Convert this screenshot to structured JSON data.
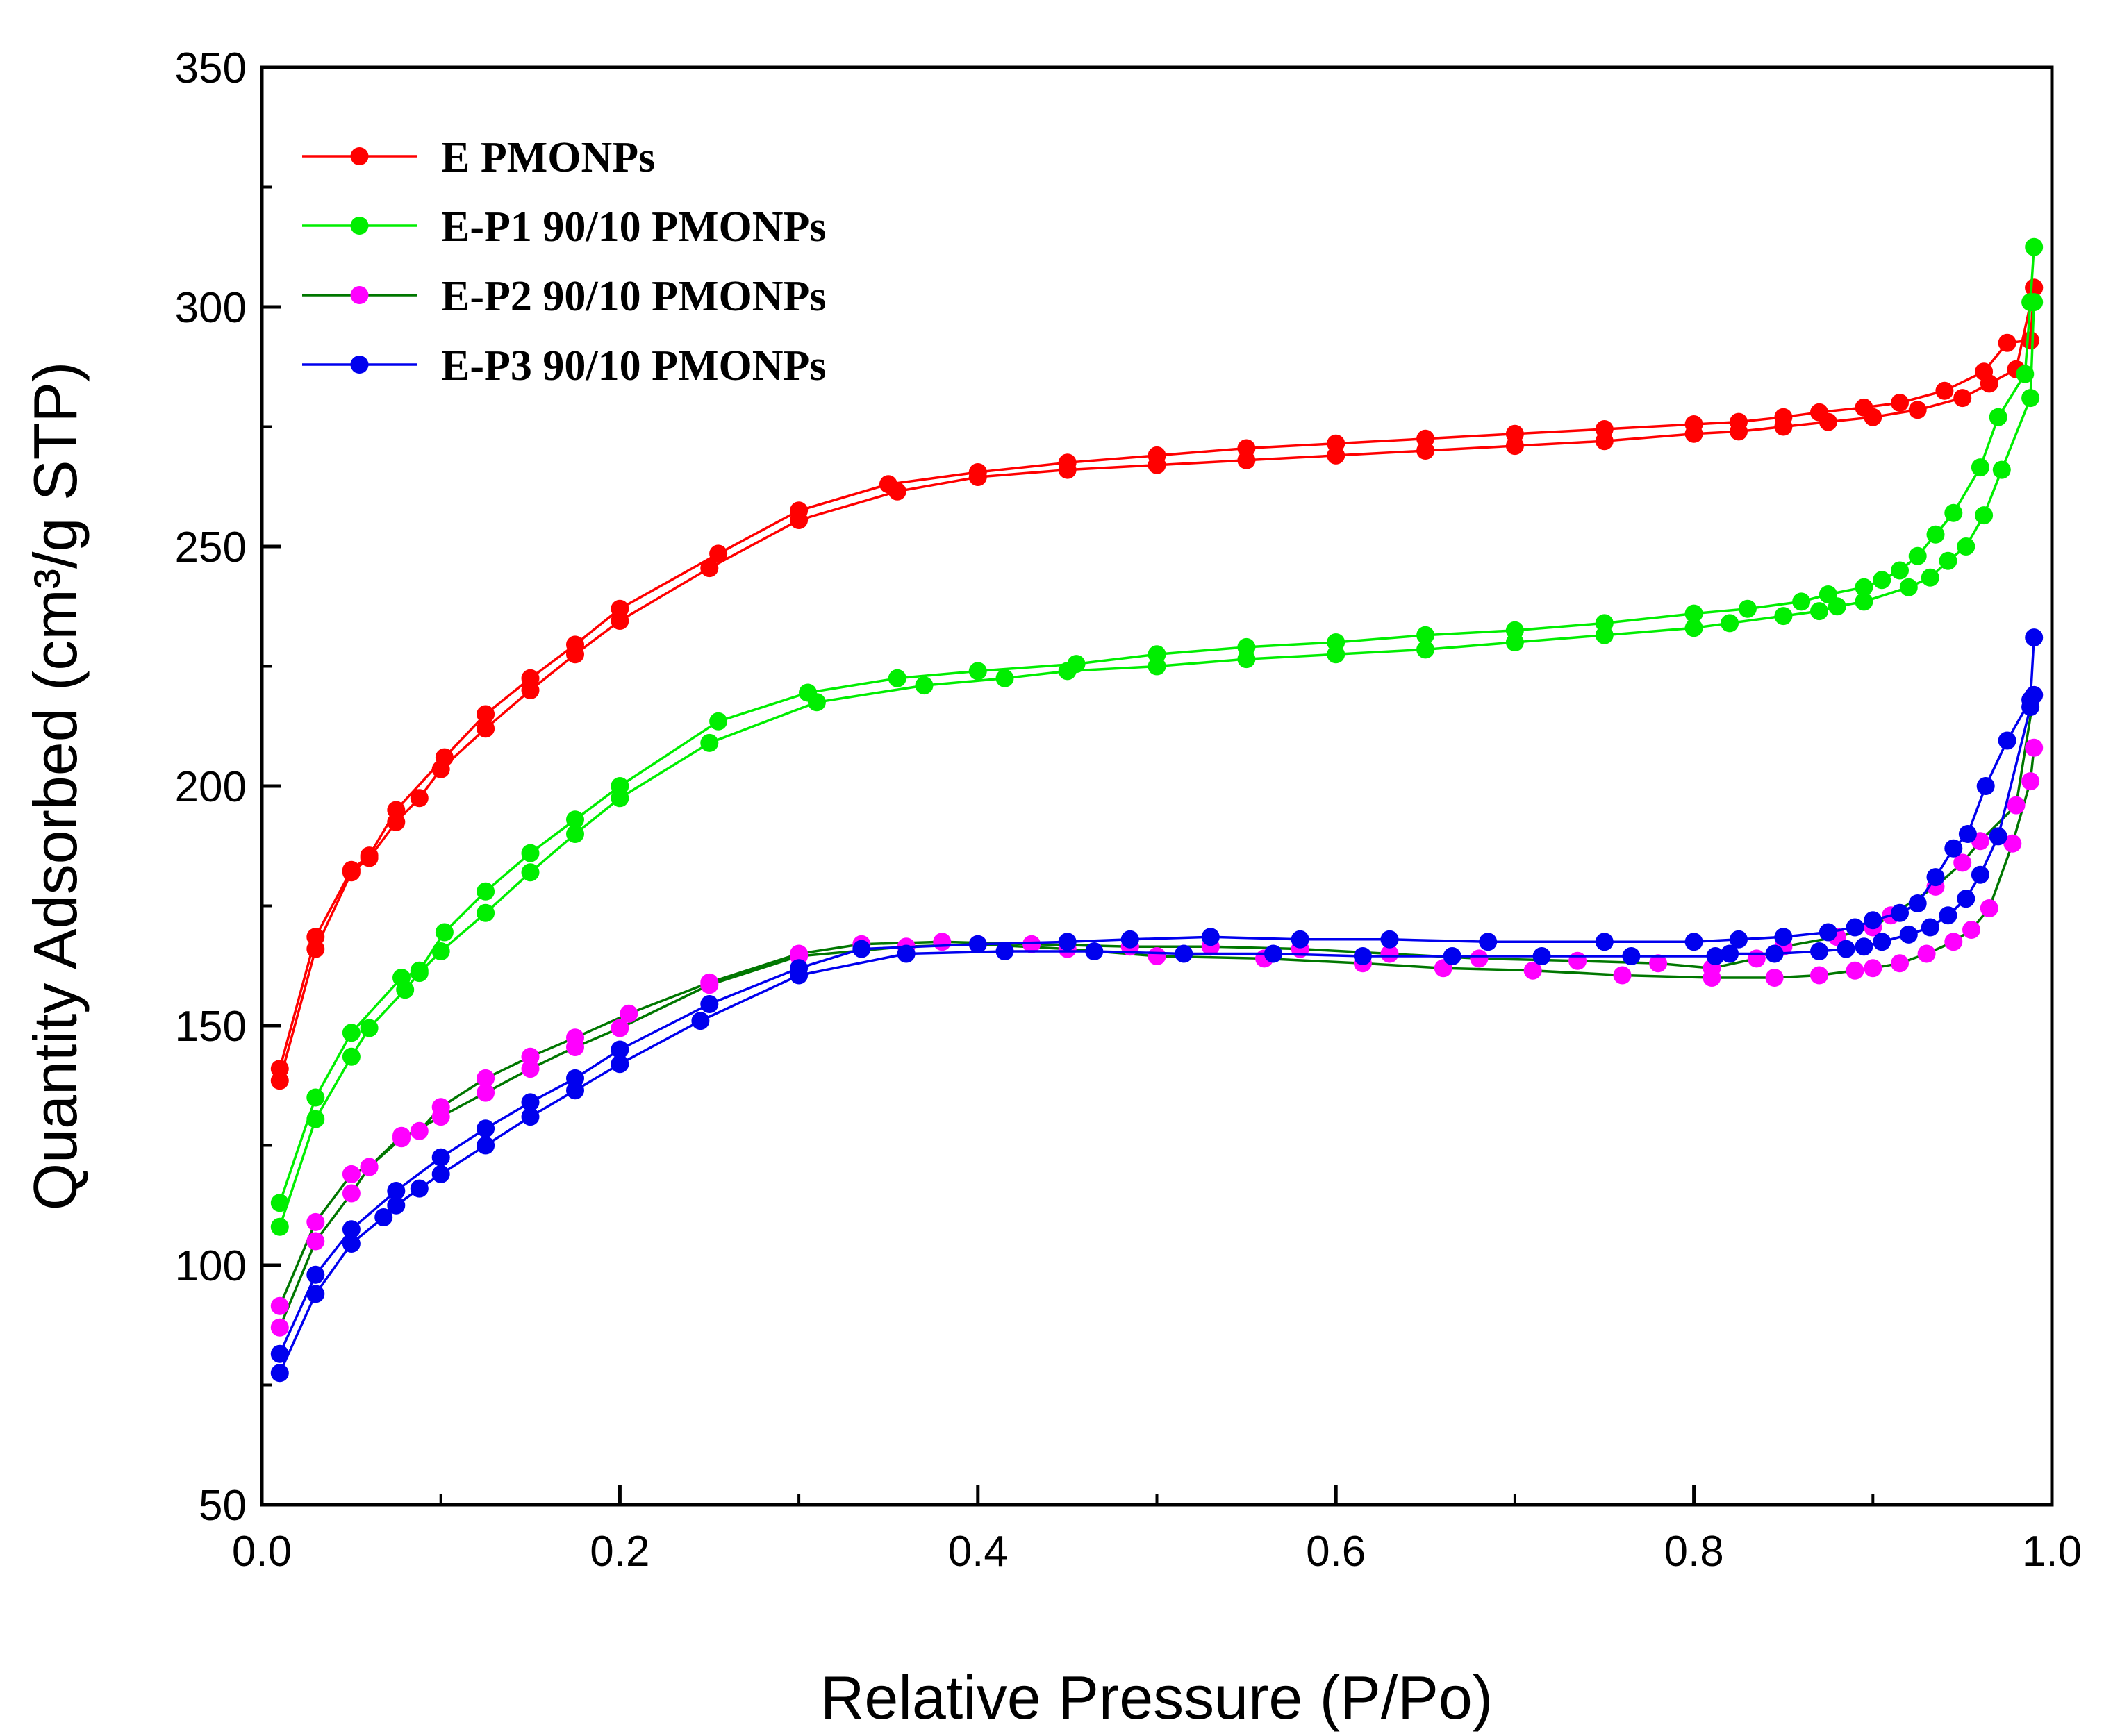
{
  "chart_data": {
    "type": "line",
    "title": "",
    "xlabel": "Relative Pressure (P/Po)",
    "ylabel": "Quantity Adsorbed (cm³/g STP)",
    "xlim": [
      0.0,
      1.0
    ],
    "ylim": [
      50,
      350
    ],
    "x_ticks": [
      "0.0",
      "0.2",
      "0.4",
      "0.6",
      "0.8",
      "1.0"
    ],
    "y_ticks": [
      "50",
      "100",
      "150",
      "200",
      "250",
      "300",
      "350"
    ],
    "grid": false,
    "legend_position": "top-left",
    "series": [
      {
        "name": "E PMONPs",
        "color": "#ff0000",
        "adsorption": [
          [
            0.01,
            138.5
          ],
          [
            0.03,
            166
          ],
          [
            0.05,
            182
          ],
          [
            0.06,
            185
          ],
          [
            0.075,
            192.5
          ],
          [
            0.088,
            197.5
          ],
          [
            0.1,
            203.5
          ],
          [
            0.125,
            212
          ],
          [
            0.15,
            220
          ],
          [
            0.175,
            227.5
          ],
          [
            0.2,
            234.5
          ],
          [
            0.25,
            245.5
          ],
          [
            0.3,
            255.5
          ],
          [
            0.355,
            261.5
          ],
          [
            0.4,
            264.5
          ],
          [
            0.45,
            266
          ],
          [
            0.5,
            267
          ],
          [
            0.55,
            268
          ],
          [
            0.6,
            269
          ],
          [
            0.65,
            270
          ],
          [
            0.7,
            271
          ],
          [
            0.75,
            272
          ],
          [
            0.8,
            273.5
          ],
          [
            0.825,
            274
          ],
          [
            0.85,
            275
          ],
          [
            0.875,
            276
          ],
          [
            0.9,
            277
          ],
          [
            0.925,
            278.5
          ],
          [
            0.95,
            281
          ],
          [
            0.965,
            284
          ],
          [
            0.98,
            287
          ],
          [
            0.99,
            304
          ]
        ],
        "desorption": [
          [
            0.99,
            304
          ],
          [
            0.988,
            293
          ],
          [
            0.975,
            292.5
          ],
          [
            0.962,
            286.5
          ],
          [
            0.94,
            282.5
          ],
          [
            0.915,
            280
          ],
          [
            0.895,
            279
          ],
          [
            0.87,
            278
          ],
          [
            0.85,
            277
          ],
          [
            0.825,
            276
          ],
          [
            0.8,
            275.5
          ],
          [
            0.75,
            274.5
          ],
          [
            0.7,
            273.5
          ],
          [
            0.65,
            272.5
          ],
          [
            0.6,
            271.5
          ],
          [
            0.55,
            270.5
          ],
          [
            0.5,
            269
          ],
          [
            0.45,
            267.5
          ],
          [
            0.4,
            265.5
          ],
          [
            0.35,
            263
          ],
          [
            0.3,
            257.5
          ],
          [
            0.255,
            248.5
          ],
          [
            0.2,
            237
          ],
          [
            0.175,
            229.5
          ],
          [
            0.15,
            222.5
          ],
          [
            0.125,
            215
          ],
          [
            0.102,
            206
          ],
          [
            0.075,
            195
          ],
          [
            0.06,
            185.5
          ],
          [
            0.05,
            182.5
          ],
          [
            0.03,
            168.5
          ],
          [
            0.01,
            141
          ]
        ]
      },
      {
        "name": "E-P1 90/10 PMONPs",
        "color": "#00ee00",
        "adsorption": [
          [
            0.01,
            108
          ],
          [
            0.03,
            130.5
          ],
          [
            0.05,
            143.5
          ],
          [
            0.06,
            149.5
          ],
          [
            0.08,
            157.5
          ],
          [
            0.088,
            161
          ],
          [
            0.1,
            165.5
          ],
          [
            0.125,
            173.5
          ],
          [
            0.15,
            182
          ],
          [
            0.175,
            190
          ],
          [
            0.2,
            197.5
          ],
          [
            0.25,
            209
          ],
          [
            0.31,
            217.5
          ],
          [
            0.37,
            221
          ],
          [
            0.415,
            222.5
          ],
          [
            0.45,
            224
          ],
          [
            0.5,
            225
          ],
          [
            0.55,
            226.5
          ],
          [
            0.6,
            227.5
          ],
          [
            0.65,
            228.5
          ],
          [
            0.7,
            230
          ],
          [
            0.75,
            231.5
          ],
          [
            0.8,
            233
          ],
          [
            0.82,
            234
          ],
          [
            0.85,
            235.5
          ],
          [
            0.87,
            236.5
          ],
          [
            0.88,
            237.5
          ],
          [
            0.895,
            238.5
          ],
          [
            0.92,
            241.5
          ],
          [
            0.932,
            243.5
          ],
          [
            0.942,
            247
          ],
          [
            0.952,
            250
          ],
          [
            0.962,
            256.5
          ],
          [
            0.972,
            266
          ],
          [
            0.988,
            281
          ],
          [
            0.99,
            301
          ]
        ],
        "desorption": [
          [
            0.99,
            312.5
          ],
          [
            0.988,
            301
          ],
          [
            0.985,
            286
          ],
          [
            0.97,
            277
          ],
          [
            0.96,
            266.5
          ],
          [
            0.945,
            257
          ],
          [
            0.935,
            252.5
          ],
          [
            0.925,
            248
          ],
          [
            0.915,
            245
          ],
          [
            0.905,
            243
          ],
          [
            0.895,
            241.5
          ],
          [
            0.875,
            240
          ],
          [
            0.86,
            238.5
          ],
          [
            0.83,
            237
          ],
          [
            0.8,
            236
          ],
          [
            0.75,
            234
          ],
          [
            0.7,
            232.5
          ],
          [
            0.65,
            231.5
          ],
          [
            0.6,
            230
          ],
          [
            0.55,
            229
          ],
          [
            0.5,
            227.5
          ],
          [
            0.455,
            225.5
          ],
          [
            0.4,
            224
          ],
          [
            0.355,
            222.5
          ],
          [
            0.305,
            219.5
          ],
          [
            0.255,
            213.5
          ],
          [
            0.2,
            200
          ],
          [
            0.175,
            193
          ],
          [
            0.15,
            186
          ],
          [
            0.125,
            178
          ],
          [
            0.102,
            169.5
          ],
          [
            0.088,
            161.5
          ],
          [
            0.078,
            160
          ],
          [
            0.05,
            148.5
          ],
          [
            0.03,
            135
          ],
          [
            0.01,
            113
          ]
        ]
      },
      {
        "name": "E-P2 90/10 PMONPs",
        "color": "#ff00ff",
        "line_color": "#007700",
        "adsorption": [
          [
            0.01,
            87
          ],
          [
            0.03,
            105
          ],
          [
            0.05,
            115
          ],
          [
            0.06,
            120.5
          ],
          [
            0.078,
            126.5
          ],
          [
            0.1,
            131
          ],
          [
            0.125,
            136
          ],
          [
            0.15,
            141
          ],
          [
            0.175,
            145.5
          ],
          [
            0.2,
            149.5
          ],
          [
            0.25,
            158.5
          ],
          [
            0.3,
            164.5
          ],
          [
            0.36,
            166.5
          ],
          [
            0.4,
            167
          ],
          [
            0.45,
            166
          ],
          [
            0.5,
            164.5
          ],
          [
            0.56,
            164
          ],
          [
            0.615,
            163
          ],
          [
            0.66,
            162
          ],
          [
            0.71,
            161.5
          ],
          [
            0.76,
            160.5
          ],
          [
            0.81,
            160
          ],
          [
            0.845,
            160
          ],
          [
            0.87,
            160.5
          ],
          [
            0.89,
            161.5
          ],
          [
            0.9,
            162
          ],
          [
            0.915,
            163
          ],
          [
            0.93,
            165
          ],
          [
            0.945,
            167.5
          ],
          [
            0.955,
            170
          ],
          [
            0.965,
            174.5
          ],
          [
            0.978,
            188
          ],
          [
            0.988,
            201
          ],
          [
            0.99,
            208
          ]
        ],
        "desorption": [
          [
            0.99,
            219
          ],
          [
            0.98,
            196
          ],
          [
            0.96,
            188.5
          ],
          [
            0.95,
            184
          ],
          [
            0.935,
            179
          ],
          [
            0.91,
            173
          ],
          [
            0.9,
            170.5
          ],
          [
            0.88,
            168.5
          ],
          [
            0.85,
            166.5
          ],
          [
            0.835,
            164
          ],
          [
            0.81,
            162
          ],
          [
            0.78,
            163
          ],
          [
            0.735,
            163.5
          ],
          [
            0.68,
            164
          ],
          [
            0.63,
            165
          ],
          [
            0.58,
            166
          ],
          [
            0.53,
            166.5
          ],
          [
            0.485,
            166.5
          ],
          [
            0.43,
            167
          ],
          [
            0.38,
            167.5
          ],
          [
            0.335,
            167
          ],
          [
            0.3,
            165
          ],
          [
            0.25,
            159
          ],
          [
            0.205,
            152.5
          ],
          [
            0.175,
            147.5
          ],
          [
            0.15,
            143.5
          ],
          [
            0.125,
            139
          ],
          [
            0.1,
            133
          ],
          [
            0.088,
            128
          ],
          [
            0.078,
            127
          ],
          [
            0.06,
            120.5
          ],
          [
            0.05,
            119
          ],
          [
            0.03,
            109
          ],
          [
            0.01,
            91.5
          ]
        ]
      },
      {
        "name": "E-P3 90/10 PMONPs",
        "color": "#0000ee",
        "adsorption": [
          [
            0.01,
            77.5
          ],
          [
            0.03,
            94
          ],
          [
            0.05,
            104.5
          ],
          [
            0.068,
            110
          ],
          [
            0.075,
            112.5
          ],
          [
            0.088,
            116
          ],
          [
            0.1,
            119
          ],
          [
            0.125,
            125
          ],
          [
            0.15,
            131
          ],
          [
            0.175,
            136.5
          ],
          [
            0.2,
            142
          ],
          [
            0.245,
            151
          ],
          [
            0.3,
            160.5
          ],
          [
            0.36,
            165
          ],
          [
            0.415,
            165.5
          ],
          [
            0.465,
            165.5
          ],
          [
            0.515,
            165
          ],
          [
            0.565,
            165
          ],
          [
            0.615,
            164.5
          ],
          [
            0.665,
            164.5
          ],
          [
            0.715,
            164.5
          ],
          [
            0.765,
            164.5
          ],
          [
            0.812,
            164.5
          ],
          [
            0.82,
            165
          ],
          [
            0.845,
            165
          ],
          [
            0.87,
            165.5
          ],
          [
            0.885,
            166
          ],
          [
            0.895,
            166.5
          ],
          [
            0.905,
            167.5
          ],
          [
            0.92,
            169
          ],
          [
            0.932,
            170.5
          ],
          [
            0.942,
            173
          ],
          [
            0.952,
            176.5
          ],
          [
            0.96,
            181.5
          ],
          [
            0.97,
            189.5
          ],
          [
            0.988,
            216.5
          ],
          [
            0.99,
            219
          ]
        ],
        "desorption": [
          [
            0.99,
            231
          ],
          [
            0.988,
            218
          ],
          [
            0.975,
            209.5
          ],
          [
            0.963,
            200
          ],
          [
            0.953,
            190
          ],
          [
            0.945,
            187
          ],
          [
            0.935,
            181
          ],
          [
            0.925,
            175.5
          ],
          [
            0.915,
            173.5
          ],
          [
            0.9,
            172
          ],
          [
            0.89,
            170.5
          ],
          [
            0.875,
            169.5
          ],
          [
            0.85,
            168.5
          ],
          [
            0.825,
            168
          ],
          [
            0.8,
            167.5
          ],
          [
            0.75,
            167.5
          ],
          [
            0.685,
            167.5
          ],
          [
            0.63,
            168
          ],
          [
            0.58,
            168
          ],
          [
            0.53,
            168.5
          ],
          [
            0.485,
            168
          ],
          [
            0.45,
            167.5
          ],
          [
            0.4,
            167
          ],
          [
            0.335,
            166
          ],
          [
            0.3,
            162
          ],
          [
            0.25,
            154.5
          ],
          [
            0.2,
            145
          ],
          [
            0.175,
            139
          ],
          [
            0.15,
            134
          ],
          [
            0.125,
            128.5
          ],
          [
            0.1,
            122.5
          ],
          [
            0.075,
            115.5
          ],
          [
            0.05,
            107.5
          ],
          [
            0.03,
            98
          ],
          [
            0.01,
            81.5
          ]
        ]
      }
    ]
  }
}
